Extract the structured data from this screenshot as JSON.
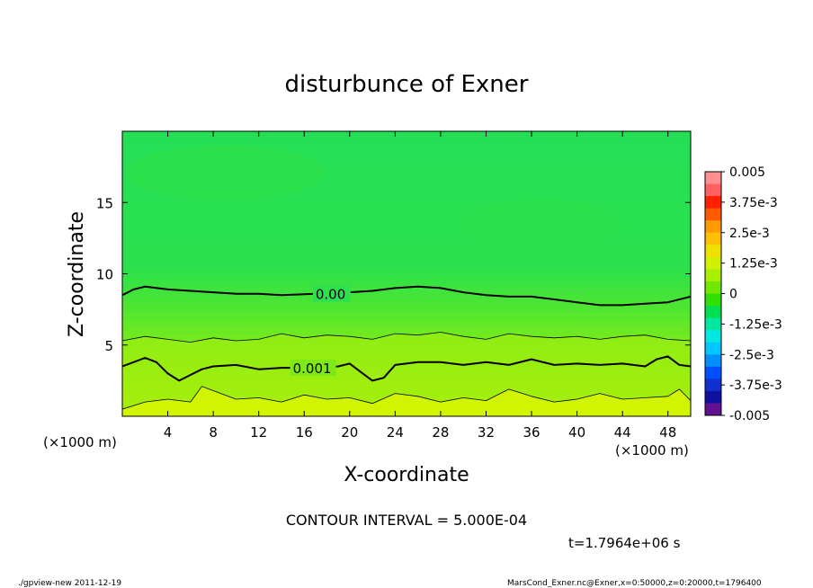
{
  "chart_data": {
    "type": "contour",
    "title": "disturbunce of Exner",
    "xlabel": "X-coordinate",
    "ylabel": "Z-coordinate",
    "x_unit": "(×1000 m)",
    "y_unit": "(×1000 m)",
    "xlim": [
      0,
      50
    ],
    "ylim": [
      0,
      20
    ],
    "x_ticks": [
      4,
      8,
      12,
      16,
      20,
      24,
      28,
      32,
      36,
      40,
      44,
      48
    ],
    "y_ticks": [
      5,
      10,
      15
    ],
    "contour_interval_text": "CONTOUR INTERVAL = 5.000E-04",
    "contour_labels": [
      {
        "text": "0.00",
        "value": 0.0,
        "x": 17,
        "z": 8.6
      },
      {
        "text": "0.001",
        "value": 0.001,
        "x": 15,
        "z": 3.4
      }
    ],
    "contours": [
      {
        "value": 0.0,
        "weight": "heavy",
        "points": [
          [
            0,
            8.5
          ],
          [
            1,
            8.9
          ],
          [
            2,
            9.1
          ],
          [
            4,
            8.9
          ],
          [
            6,
            8.8
          ],
          [
            8,
            8.7
          ],
          [
            10,
            8.6
          ],
          [
            12,
            8.6
          ],
          [
            14,
            8.5
          ],
          [
            17,
            8.6
          ],
          [
            20,
            8.7
          ],
          [
            22,
            8.8
          ],
          [
            24,
            9.0
          ],
          [
            26,
            9.1
          ],
          [
            28,
            9.0
          ],
          [
            30,
            8.7
          ],
          [
            32,
            8.5
          ],
          [
            34,
            8.4
          ],
          [
            36,
            8.4
          ],
          [
            38,
            8.2
          ],
          [
            40,
            8.0
          ],
          [
            42,
            7.8
          ],
          [
            44,
            7.8
          ],
          [
            46,
            7.9
          ],
          [
            48,
            8.0
          ],
          [
            50,
            8.4
          ]
        ]
      },
      {
        "value": 0.0005,
        "weight": "light",
        "points": [
          [
            0,
            5.3
          ],
          [
            2,
            5.6
          ],
          [
            4,
            5.4
          ],
          [
            6,
            5.2
          ],
          [
            8,
            5.5
          ],
          [
            10,
            5.3
          ],
          [
            12,
            5.4
          ],
          [
            14,
            5.8
          ],
          [
            16,
            5.5
          ],
          [
            18,
            5.7
          ],
          [
            20,
            5.6
          ],
          [
            22,
            5.4
          ],
          [
            24,
            5.8
          ],
          [
            26,
            5.7
          ],
          [
            28,
            5.9
          ],
          [
            30,
            5.6
          ],
          [
            32,
            5.4
          ],
          [
            34,
            5.8
          ],
          [
            36,
            5.6
          ],
          [
            38,
            5.5
          ],
          [
            40,
            5.6
          ],
          [
            42,
            5.4
          ],
          [
            44,
            5.6
          ],
          [
            46,
            5.7
          ],
          [
            48,
            5.4
          ],
          [
            50,
            5.3
          ]
        ]
      },
      {
        "value": 0.001,
        "weight": "heavy",
        "points": [
          [
            0,
            3.5
          ],
          [
            1,
            3.8
          ],
          [
            2,
            4.1
          ],
          [
            3,
            3.8
          ],
          [
            4,
            3.0
          ],
          [
            5,
            2.5
          ],
          [
            6,
            2.9
          ],
          [
            7,
            3.3
          ],
          [
            8,
            3.5
          ],
          [
            10,
            3.6
          ],
          [
            12,
            3.3
          ],
          [
            14,
            3.4
          ],
          [
            17,
            3.4
          ],
          [
            19,
            3.5
          ],
          [
            20,
            3.7
          ],
          [
            21,
            3.1
          ],
          [
            22,
            2.5
          ],
          [
            23,
            2.7
          ],
          [
            24,
            3.6
          ],
          [
            26,
            3.8
          ],
          [
            28,
            3.8
          ],
          [
            30,
            3.6
          ],
          [
            32,
            3.8
          ],
          [
            34,
            3.6
          ],
          [
            36,
            4.0
          ],
          [
            38,
            3.6
          ],
          [
            40,
            3.7
          ],
          [
            42,
            3.6
          ],
          [
            44,
            3.7
          ],
          [
            46,
            3.5
          ],
          [
            47,
            4.0
          ],
          [
            48,
            4.2
          ],
          [
            49,
            3.6
          ],
          [
            50,
            3.5
          ]
        ]
      },
      {
        "value": 0.0015,
        "weight": "light",
        "points": [
          [
            0,
            0.5
          ],
          [
            2,
            1.0
          ],
          [
            4,
            1.2
          ],
          [
            6,
            1.0
          ],
          [
            7,
            2.1
          ],
          [
            8,
            1.8
          ],
          [
            10,
            1.2
          ],
          [
            12,
            1.3
          ],
          [
            14,
            1.0
          ],
          [
            16,
            1.5
          ],
          [
            18,
            1.2
          ],
          [
            20,
            1.3
          ],
          [
            22,
            0.9
          ],
          [
            24,
            1.6
          ],
          [
            26,
            1.4
          ],
          [
            28,
            1.0
          ],
          [
            30,
            1.3
          ],
          [
            32,
            1.1
          ],
          [
            34,
            1.9
          ],
          [
            36,
            1.4
          ],
          [
            38,
            1.0
          ],
          [
            40,
            1.2
          ],
          [
            42,
            1.6
          ],
          [
            44,
            1.2
          ],
          [
            46,
            1.3
          ],
          [
            48,
            1.4
          ],
          [
            49,
            1.9
          ],
          [
            50,
            1.1
          ]
        ]
      }
    ],
    "colorbar": {
      "labels": [
        "0.005",
        "3.75e-3",
        "2.5e-3",
        "1.25e-3",
        "0",
        "-1.25e-3",
        "-2.5e-3",
        "-3.75e-3",
        "-0.005"
      ],
      "min": -0.005,
      "max": 0.005,
      "colors_top_to_bottom": [
        "#ff9090",
        "#ff6060",
        "#ff2000",
        "#ff5a00",
        "#ff9a00",
        "#ffc000",
        "#f0e000",
        "#d0f000",
        "#a8f000",
        "#70e800",
        "#30e000",
        "#00e050",
        "#00e8a0",
        "#00e8e0",
        "#00c8ff",
        "#0090ff",
        "#0050ff",
        "#1030d0",
        "#1010a0",
        "#601090"
      ]
    },
    "fill_colors": {
      "top": "#22e05a",
      "mid": "#3fe838",
      "low": "#88ef10",
      "bottom": "#d4f200",
      "patch": "#2ee04a"
    },
    "time_text": "t=1.7964e+06 s",
    "footer_left": "./gpview-new   2011-12-19",
    "footer_right": "MarsCond_Exner.nc@Exner,x=0:50000,z=0:20000,t=1796400"
  }
}
